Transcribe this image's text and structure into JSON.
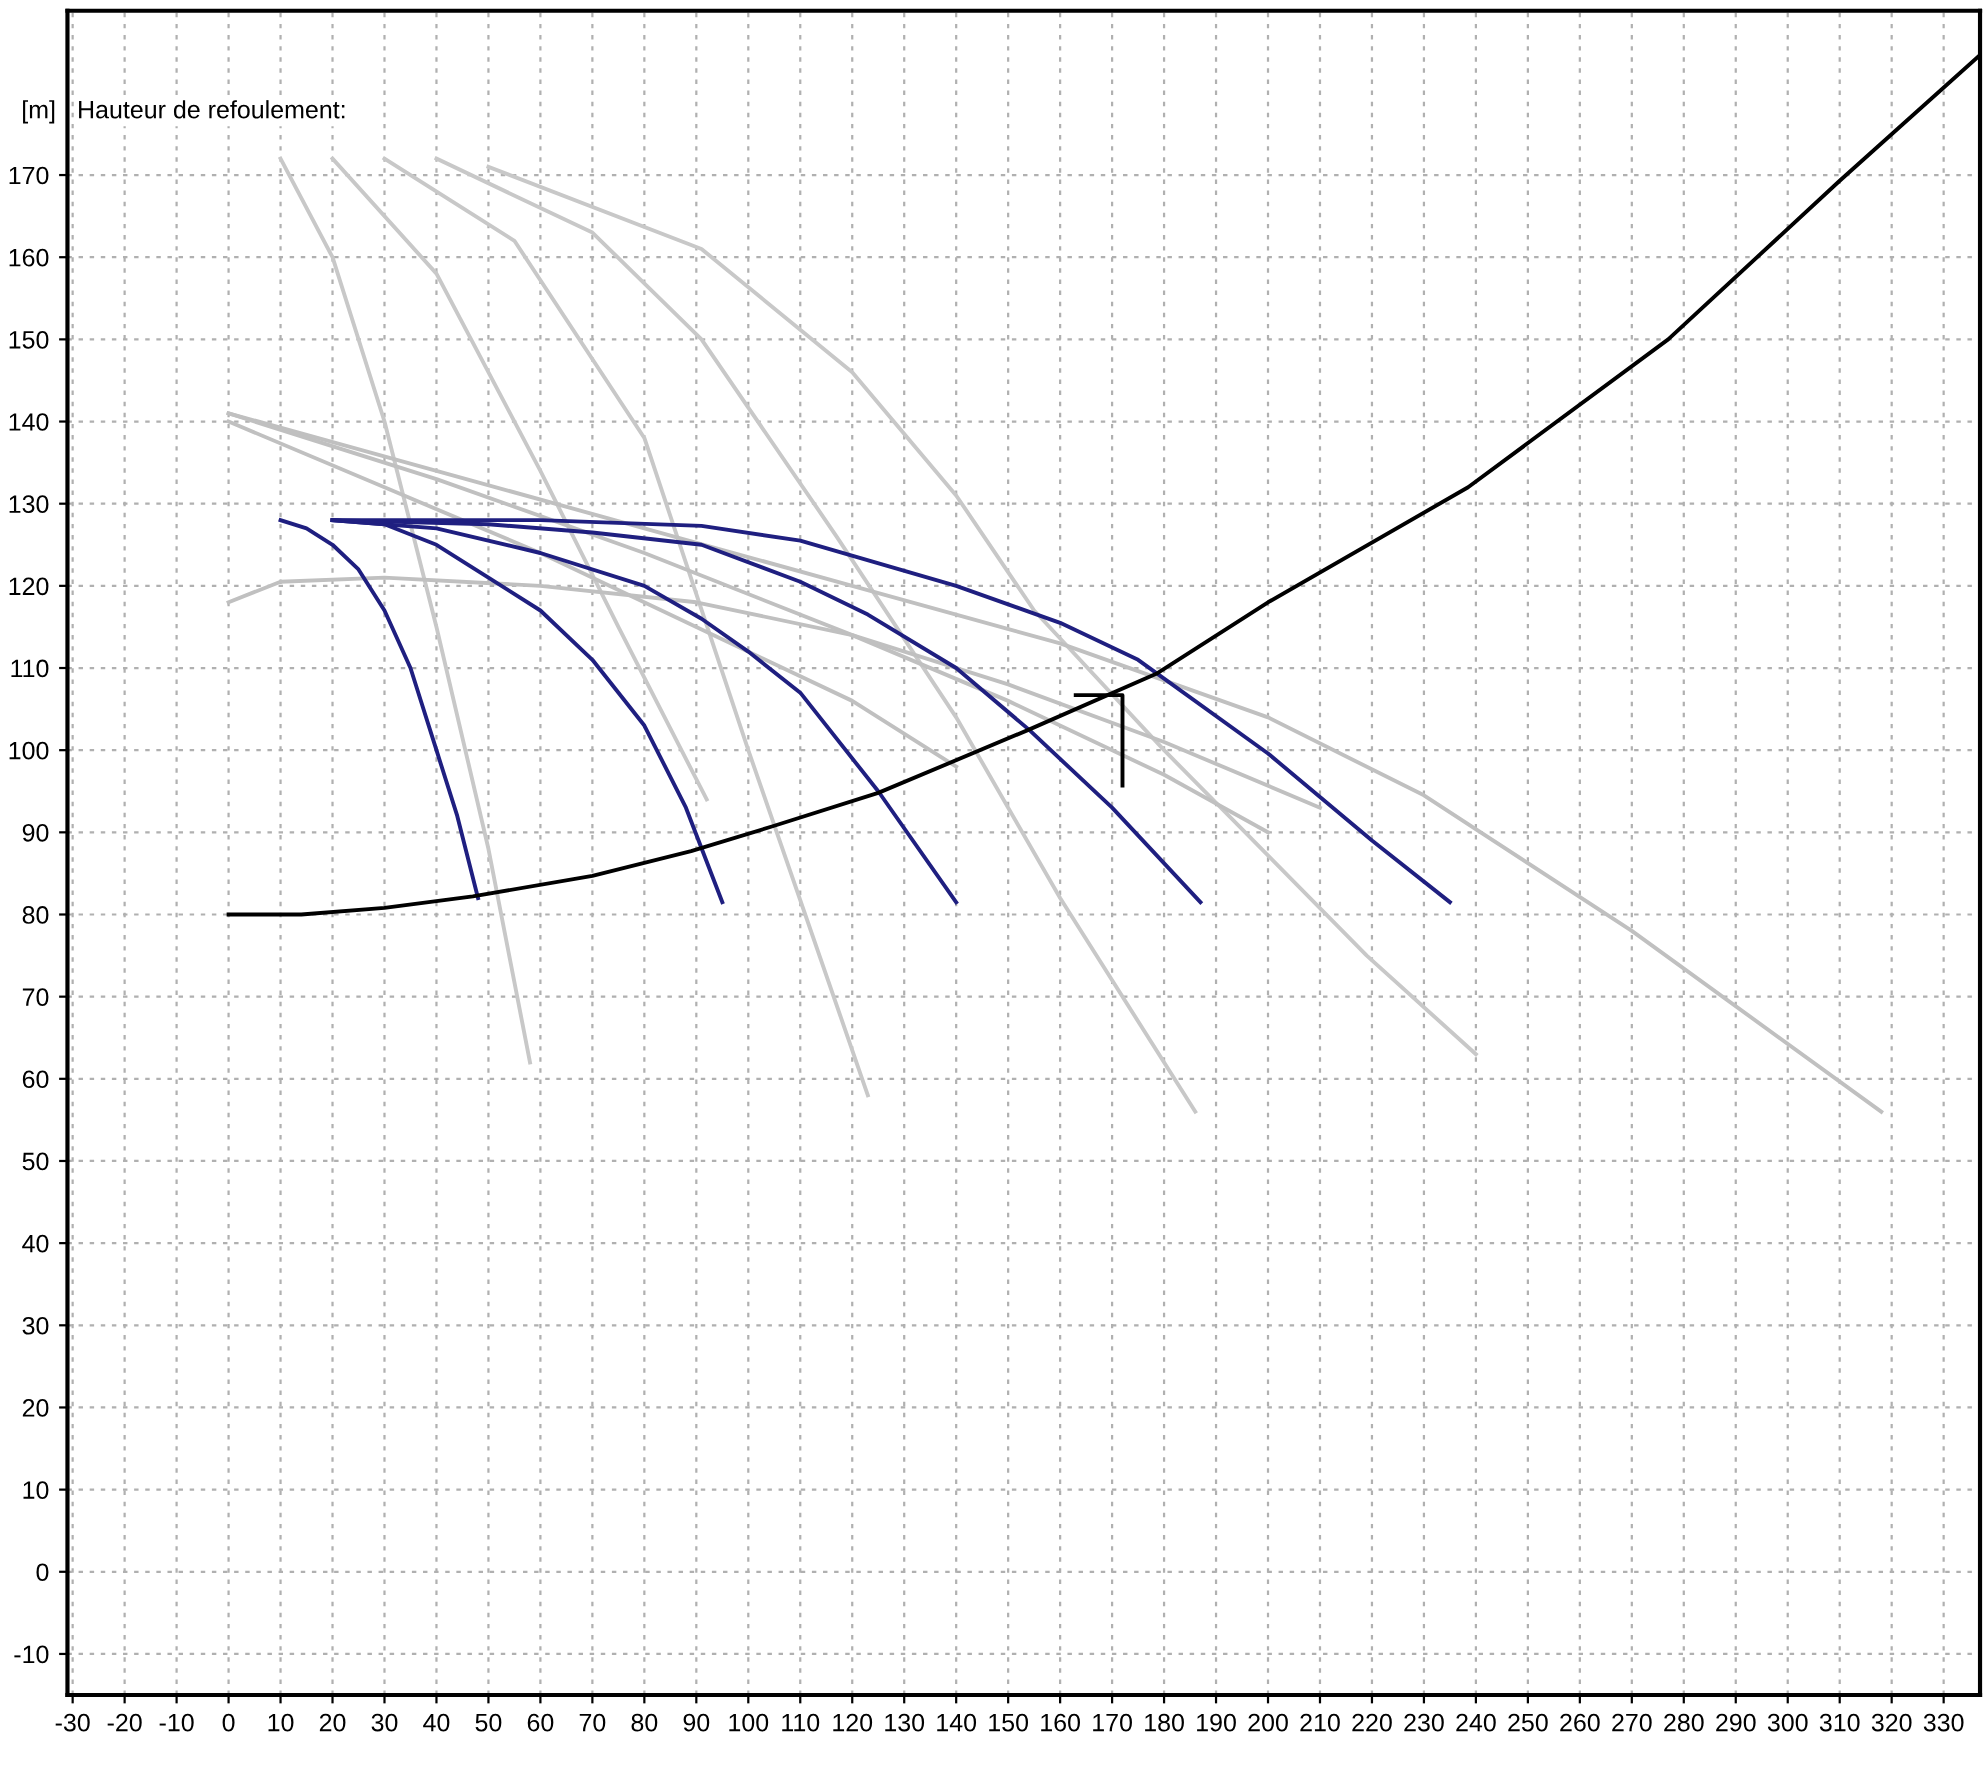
{
  "chart_data": {
    "type": "line",
    "title": "Hauteur de refoulement:",
    "ylabel": "[m]",
    "xlim": [
      -31,
      337
    ],
    "ylim": [
      -15,
      190
    ],
    "xticks": [
      -30,
      -20,
      -10,
      0,
      10,
      20,
      30,
      40,
      50,
      60,
      70,
      80,
      90,
      100,
      110,
      120,
      130,
      140,
      150,
      160,
      170,
      180,
      190,
      200,
      210,
      220,
      230,
      240,
      250,
      260,
      270,
      280,
      290,
      300,
      310,
      320,
      330
    ],
    "yticks": [
      -10,
      0,
      10,
      20,
      30,
      40,
      50,
      60,
      70,
      80,
      90,
      100,
      110,
      120,
      130,
      140,
      150,
      160,
      170
    ],
    "grid": true,
    "marker": "none",
    "line_style": "solid",
    "series": [
      {
        "color": "#c8c8c8",
        "x": [
          10,
          20,
          30,
          40,
          50,
          58
        ],
        "values": [
          172,
          160,
          140,
          115,
          88,
          62
        ]
      },
      {
        "color": "#c8c8c8",
        "x": [
          20,
          40,
          60,
          75,
          92
        ],
        "values": [
          172,
          158,
          134,
          115,
          94
        ]
      },
      {
        "color": "#c8c8c8",
        "x": [
          30,
          55,
          80,
          100,
          123
        ],
        "values": [
          172,
          162,
          138,
          100,
          58
        ]
      },
      {
        "color": "#c8c8c8",
        "x": [
          40,
          70,
          91,
          117,
          140,
          160,
          186
        ],
        "values": [
          172,
          163,
          150,
          126,
          104,
          82,
          56
        ]
      },
      {
        "color": "#c8c8c8",
        "x": [
          50,
          91,
          120,
          140,
          155,
          180,
          219,
          240
        ],
        "values": [
          171,
          161,
          146,
          131,
          117,
          100,
          75,
          63
        ]
      },
      {
        "color": "#c0c0c0",
        "x": [
          0,
          40,
          80,
          120,
          160,
          200,
          230,
          270,
          318
        ],
        "values": [
          141,
          134,
          127,
          120,
          113,
          104,
          94.5,
          78,
          56
        ]
      },
      {
        "color": "#c0c0c0",
        "x": [
          0,
          40,
          80,
          120,
          150,
          180,
          200
        ],
        "values": [
          141,
          133,
          124,
          114,
          106,
          97,
          90
        ]
      },
      {
        "color": "#c0c0c0",
        "x": [
          0,
          30,
          60,
          90,
          120,
          140
        ],
        "values": [
          140,
          132,
          124,
          115,
          106,
          98
        ]
      },
      {
        "color": "#c0c0c0",
        "x": [
          0,
          10,
          30,
          60,
          90,
          120,
          150,
          180,
          210
        ],
        "values": [
          118,
          120.5,
          121,
          120,
          118,
          114,
          108,
          101,
          93
        ]
      },
      {
        "color": "#1f1f80",
        "x": [
          10,
          15,
          20,
          25,
          30,
          35,
          40,
          44,
          48
        ],
        "values": [
          128,
          127,
          125,
          122,
          117,
          110,
          100,
          92,
          82
        ]
      },
      {
        "color": "#1f1f80",
        "x": [
          20,
          30,
          40,
          50,
          60,
          70,
          80,
          88,
          95
        ],
        "values": [
          128,
          127.5,
          125,
          121,
          117,
          111,
          103,
          93,
          81.5
        ]
      },
      {
        "color": "#1f1f80",
        "x": [
          20,
          40,
          60,
          80,
          91,
          100,
          110,
          125,
          140
        ],
        "values": [
          128,
          127,
          124,
          120,
          116,
          112,
          107,
          95,
          81.5
        ]
      },
      {
        "color": "#1f1f80",
        "x": [
          20,
          50,
          70,
          91,
          110,
          123,
          140,
          154,
          170,
          187
        ],
        "values": [
          128,
          127.5,
          126.5,
          125,
          120.5,
          116.5,
          110,
          102.5,
          93,
          81.5
        ]
      },
      {
        "color": "#1f1f80",
        "x": [
          20,
          60,
          91,
          110,
          140,
          160,
          175,
          200,
          220,
          235
        ],
        "values": [
          128,
          128,
          127.3,
          125.5,
          120,
          115.5,
          111,
          99.6,
          89,
          81.5
        ]
      },
      {
        "color": "#000000",
        "x": [
          0,
          14,
          30,
          47,
          70,
          89,
          105,
          125,
          154,
          178.5,
          200,
          238.5,
          277,
          310,
          337
        ],
        "values": [
          80,
          80,
          80.8,
          82.2,
          84.7,
          87.7,
          90.8,
          94.8,
          102.5,
          109.3,
          118,
          132,
          150,
          169.3,
          184.6
        ]
      },
      {
        "color": "#000000",
        "x": [
          163,
          172,
          172
        ],
        "values": [
          106.7,
          106.7,
          95.7
        ]
      }
    ]
  }
}
